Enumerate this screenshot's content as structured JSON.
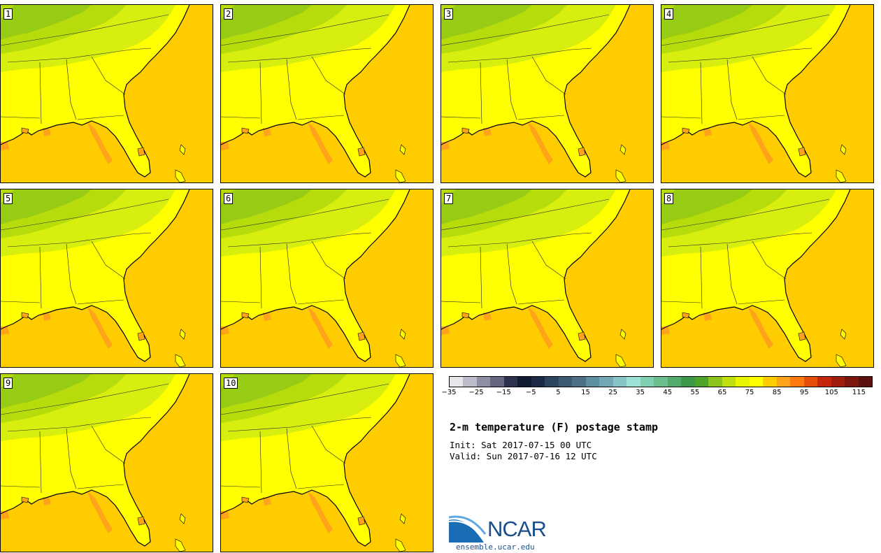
{
  "panels": [
    {
      "label": "1"
    },
    {
      "label": "2"
    },
    {
      "label": "3"
    },
    {
      "label": "4"
    },
    {
      "label": "5"
    },
    {
      "label": "6"
    },
    {
      "label": "7"
    },
    {
      "label": "8"
    },
    {
      "label": "9"
    },
    {
      "label": "10"
    }
  ],
  "colorbar": {
    "colors": [
      "#e6e6eb",
      "#bcbccb",
      "#8f8fa3",
      "#666680",
      "#2e334d",
      "#111c33",
      "#1c2a45",
      "#2e4560",
      "#3e5a75",
      "#4d7088",
      "#5e8fa0",
      "#71a8b3",
      "#86c5c5",
      "#9de0d6",
      "#7fcfb0",
      "#6bbf8f",
      "#52ad6c",
      "#3d9a48",
      "#4ea429",
      "#8ec31b",
      "#c0df0f",
      "#e8f500",
      "#ffff00",
      "#ffcc00",
      "#ffa31a",
      "#ff7a0d",
      "#e6500a",
      "#c4280c",
      "#a01e0e",
      "#7d160f",
      "#5c1010"
    ],
    "tick_labels": [
      "−35",
      "−25",
      "−15",
      "−5",
      "5",
      "15",
      "25",
      "35",
      "45",
      "55",
      "65",
      "75",
      "85",
      "95",
      "105",
      "115"
    ]
  },
  "title": "2-m temperature (F) postage stamp",
  "init": "Init: Sat 2017-07-15 00 UTC",
  "valid": "Valid: Sun 2017-07-16 12 UTC",
  "logo": {
    "text": "NCAR",
    "url": "ensemble.ucar.edu"
  }
}
